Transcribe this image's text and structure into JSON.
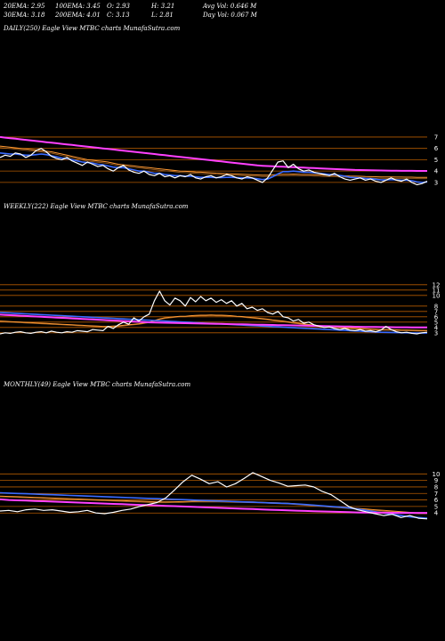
{
  "header": {
    "ema20": "20EMA: 2.95",
    "ema100": "100EMA: 3.45",
    "open": "O: 2.93",
    "high": "H: 3.21",
    "avg_vol": "Avg Vol: 0.646  M",
    "ema30": "30EMA: 3.18",
    "ema200": "200EMA: 4.01",
    "close": "C: 3.13",
    "low": "L: 2.81",
    "day_vol": "Day Vol: 0.067 M"
  },
  "panels": {
    "daily_title": "DAILY(250) Eagle   View  MTBC charts MunafaSutra.com",
    "weekly_title": "WEEKLY(222) Eagle   View  MTBC charts MunafaSutra.com",
    "monthly_title": "MONTHLY(49) Eagle   View  MTBC charts MunafaSutra.com"
  },
  "colors": {
    "price": "#ffffff",
    "ema_pink": "#ff40ff",
    "ema_blue": "#3a6bff",
    "ema_orange": "#ff9933",
    "ema_brown": "#a06020",
    "grid_orange": "#b35a00"
  },
  "chart_data": [
    {
      "type": "line",
      "title": "DAILY(250) Eagle   View  MTBC charts MunafaSutra.com",
      "y_ticks": [
        3,
        4,
        5,
        6,
        7
      ],
      "ylim": [
        2.6,
        7.7
      ],
      "price": [
        5.2,
        5.4,
        5.3,
        5.6,
        5.5,
        5.2,
        5.4,
        5.8,
        6.0,
        5.7,
        5.3,
        5.1,
        5.0,
        5.2,
        4.9,
        4.7,
        4.5,
        4.8,
        4.6,
        4.4,
        4.5,
        4.2,
        4.0,
        4.3,
        4.5,
        4.1,
        3.9,
        3.8,
        4.0,
        3.7,
        3.6,
        3.8,
        3.5,
        3.6,
        3.4,
        3.6,
        3.5,
        3.7,
        3.4,
        3.3,
        3.5,
        3.6,
        3.4,
        3.5,
        3.7,
        3.6,
        3.4,
        3.3,
        3.5,
        3.4,
        3.2,
        3.0,
        3.4,
        4.1,
        4.8,
        4.9,
        4.3,
        4.6,
        4.2,
        4.0,
        4.1,
        3.9,
        3.8,
        3.7,
        3.6,
        3.8,
        3.5,
        3.3,
        3.2,
        3.3,
        3.4,
        3.2,
        3.3,
        3.1,
        3.0,
        3.2,
        3.4,
        3.2,
        3.1,
        3.3,
        3.0,
        2.8,
        2.9,
        3.1
      ],
      "ema_pink": [
        7.0,
        6.95,
        6.9,
        6.85,
        6.8,
        6.75,
        6.7,
        6.65,
        6.6,
        6.55,
        6.5,
        6.45,
        6.4,
        6.35,
        6.3,
        6.25,
        6.2,
        6.15,
        6.1,
        6.05,
        6.0,
        5.95,
        5.9,
        5.85,
        5.8,
        5.75,
        5.7,
        5.65,
        5.6,
        5.55,
        5.5,
        5.45,
        5.4,
        5.35,
        5.3,
        5.25,
        5.2,
        5.15,
        5.1,
        5.05,
        5.0,
        4.95,
        4.9,
        4.85,
        4.8,
        4.75,
        4.7,
        4.65,
        4.6,
        4.55,
        4.5,
        4.47,
        4.44,
        4.42,
        4.4,
        4.38,
        4.36,
        4.34,
        4.32,
        4.3,
        4.28,
        4.26,
        4.24,
        4.22,
        4.2,
        4.18,
        4.16,
        4.14,
        4.12,
        4.1,
        4.09,
        4.08,
        4.07,
        4.06,
        4.05,
        4.04,
        4.03,
        4.03,
        4.02,
        4.02,
        4.02,
        4.01,
        4.01,
        4.01
      ],
      "ema_orange": [
        6.2,
        6.15,
        6.1,
        6.05,
        6.0,
        5.95,
        5.9,
        5.85,
        5.8,
        5.75,
        5.7,
        5.6,
        5.5,
        5.4,
        5.3,
        5.2,
        5.1,
        5.0,
        4.95,
        4.9,
        4.85,
        4.8,
        4.7,
        4.6,
        4.55,
        4.5,
        4.45,
        4.4,
        4.35,
        4.3,
        4.25,
        4.2,
        4.15,
        4.1,
        4.05,
        4.0,
        3.98,
        3.95,
        3.92,
        3.9,
        3.88,
        3.85,
        3.82,
        3.8,
        3.78,
        3.76,
        3.74,
        3.72,
        3.7,
        3.68,
        3.66,
        3.64,
        3.64,
        3.66,
        3.7,
        3.72,
        3.72,
        3.73,
        3.72,
        3.7,
        3.7,
        3.68,
        3.66,
        3.64,
        3.62,
        3.62,
        3.6,
        3.58,
        3.56,
        3.55,
        3.54,
        3.52,
        3.51,
        3.5,
        3.49,
        3.48,
        3.48,
        3.47,
        3.47,
        3.46,
        3.46,
        3.45,
        3.45,
        3.45
      ],
      "ema_blue": [
        5.6,
        5.55,
        5.5,
        5.5,
        5.45,
        5.4,
        5.4,
        5.45,
        5.5,
        5.45,
        5.35,
        5.25,
        5.15,
        5.1,
        5.0,
        4.9,
        4.8,
        4.75,
        4.7,
        4.6,
        4.55,
        4.45,
        4.35,
        4.3,
        4.3,
        4.2,
        4.1,
        4.0,
        4.0,
        3.9,
        3.8,
        3.8,
        3.7,
        3.65,
        3.6,
        3.6,
        3.55,
        3.55,
        3.5,
        3.45,
        3.45,
        3.45,
        3.42,
        3.42,
        3.45,
        3.45,
        3.42,
        3.4,
        3.4,
        3.38,
        3.32,
        3.25,
        3.3,
        3.5,
        3.75,
        3.95,
        3.95,
        4.0,
        3.95,
        3.9,
        3.9,
        3.85,
        3.8,
        3.75,
        3.7,
        3.7,
        3.62,
        3.55,
        3.45,
        3.42,
        3.4,
        3.35,
        3.33,
        3.28,
        3.22,
        3.22,
        3.25,
        3.22,
        3.2,
        3.2,
        3.15,
        3.05,
        3.0,
        3.05
      ]
    },
    {
      "type": "line",
      "title": "WEEKLY(222) Eagle   View  MTBC charts MunafaSutra.com",
      "y_ticks": [
        3,
        4,
        5,
        6,
        7,
        8,
        10,
        11,
        12
      ],
      "ylim": [
        2.3,
        12.8
      ],
      "price": [
        2.8,
        3.0,
        2.9,
        3.1,
        3.2,
        3.0,
        2.9,
        3.1,
        3.2,
        3.0,
        3.3,
        3.1,
        3.0,
        3.2,
        3.1,
        3.4,
        3.3,
        3.2,
        3.6,
        3.5,
        3.4,
        4.2,
        3.8,
        4.5,
        5.0,
        4.6,
        5.8,
        5.2,
        6.0,
        6.5,
        9.0,
        10.8,
        9.0,
        8.2,
        9.5,
        9.0,
        8.0,
        9.6,
        8.8,
        9.8,
        9.0,
        9.5,
        8.7,
        9.2,
        8.5,
        9.0,
        8.0,
        8.5,
        7.5,
        7.8,
        7.2,
        7.5,
        6.8,
        6.5,
        7.0,
        6.0,
        5.8,
        5.2,
        5.5,
        4.8,
        5.0,
        4.5,
        4.2,
        4.0,
        4.1,
        3.8,
        3.6,
        3.8,
        3.5,
        3.4,
        3.6,
        3.3,
        3.4,
        3.2,
        3.5,
        4.2,
        3.6,
        3.2,
        3.0,
        3.1,
        2.9,
        2.8,
        3.0,
        3.1
      ],
      "ema_pink": [
        6.4,
        6.35,
        6.3,
        6.25,
        6.2,
        6.15,
        6.1,
        6.05,
        6.0,
        5.95,
        5.9,
        5.85,
        5.8,
        5.75,
        5.7,
        5.65,
        5.6,
        5.55,
        5.5,
        5.45,
        5.4,
        5.35,
        5.3,
        5.25,
        5.2,
        5.15,
        5.1,
        5.05,
        5.0,
        4.95,
        4.92,
        4.9,
        4.88,
        4.86,
        4.84,
        4.82,
        4.8,
        4.78,
        4.76,
        4.74,
        4.72,
        4.7,
        4.68,
        4.66,
        4.64,
        4.62,
        4.6,
        4.58,
        4.56,
        4.54,
        4.52,
        4.5,
        4.48,
        4.46,
        4.44,
        4.42,
        4.4,
        4.38,
        4.36,
        4.34,
        4.32,
        4.3,
        4.28,
        4.26,
        4.24,
        4.22,
        4.2,
        4.18,
        4.16,
        4.14,
        4.12,
        4.1,
        4.09,
        4.08,
        4.07,
        4.06,
        4.05,
        4.04,
        4.03,
        4.03,
        4.02,
        4.02,
        4.01,
        4.01
      ],
      "ema_orange": [
        5.2,
        5.15,
        5.1,
        5.05,
        5.0,
        4.95,
        4.9,
        4.85,
        4.8,
        4.75,
        4.7,
        4.65,
        4.6,
        4.55,
        4.5,
        4.45,
        4.4,
        4.35,
        4.3,
        4.25,
        4.2,
        4.2,
        4.25,
        4.3,
        4.4,
        4.5,
        4.6,
        4.7,
        4.85,
        5.0,
        5.3,
        5.6,
        5.8,
        5.9,
        6.0,
        6.1,
        6.1,
        6.2,
        6.25,
        6.3,
        6.3,
        6.35,
        6.3,
        6.3,
        6.25,
        6.2,
        6.1,
        6.05,
        5.95,
        5.85,
        5.75,
        5.65,
        5.55,
        5.4,
        5.3,
        5.2,
        5.05,
        4.9,
        4.8,
        4.65,
        4.55,
        4.45,
        4.35,
        4.25,
        4.2,
        4.1,
        4.0,
        3.95,
        3.9,
        3.85,
        3.8,
        3.75,
        3.7,
        3.65,
        3.6,
        3.6,
        3.58,
        3.55,
        3.52,
        3.5,
        3.48,
        3.46,
        3.45,
        3.45
      ],
      "ema_blue": [
        6.8,
        6.75,
        6.7,
        6.65,
        6.6,
        6.55,
        6.5,
        6.45,
        6.4,
        6.35,
        6.3,
        6.25,
        6.2,
        6.15,
        6.1,
        6.05,
        6.0,
        5.95,
        5.9,
        5.85,
        5.8,
        5.75,
        5.7,
        5.65,
        5.6,
        5.55,
        5.5,
        5.45,
        5.4,
        5.35,
        5.3,
        5.25,
        5.2,
        5.15,
        5.1,
        5.05,
        5.0,
        4.95,
        4.9,
        4.85,
        4.8,
        4.75,
        4.7,
        4.65,
        4.6,
        4.55,
        4.5,
        4.45,
        4.4,
        4.35,
        4.3,
        4.25,
        4.2,
        4.15,
        4.1,
        4.05,
        4.0,
        3.95,
        3.9,
        3.85,
        3.8,
        3.75,
        3.7,
        3.65,
        3.6,
        3.55,
        3.5,
        3.45,
        3.4,
        3.35,
        3.3,
        3.25,
        3.2,
        3.15,
        3.1,
        3.08,
        3.06,
        3.04,
        3.02,
        3.0,
        2.98,
        2.96,
        2.95,
        2.95
      ]
    },
    {
      "type": "line",
      "title": "MONTHLY(49) Eagle   View  MTBC charts MunafaSutra.com",
      "y_ticks": [
        4,
        5,
        6,
        7,
        8,
        9,
        10
      ],
      "ylim": [
        2.8,
        11.0
      ],
      "price": [
        4.3,
        4.4,
        4.2,
        4.5,
        4.6,
        4.4,
        4.5,
        4.3,
        4.1,
        4.2,
        4.4,
        4.0,
        3.9,
        4.1,
        4.4,
        4.6,
        5.0,
        5.3,
        5.6,
        6.3,
        7.5,
        8.8,
        9.8,
        9.2,
        8.5,
        8.8,
        8.0,
        8.5,
        9.3,
        10.2,
        9.6,
        9.0,
        8.6,
        8.1,
        8.2,
        8.3,
        8.0,
        7.3,
        6.8,
        5.9,
        5.0,
        4.5,
        4.2,
        3.9,
        3.6,
        3.8,
        3.3,
        3.6,
        3.2,
        3.1
      ],
      "ema_pink": [
        6.1,
        6.0,
        5.95,
        5.9,
        5.85,
        5.8,
        5.75,
        5.7,
        5.65,
        5.6,
        5.55,
        5.5,
        5.45,
        5.4,
        5.35,
        5.3,
        5.25,
        5.2,
        5.15,
        5.1,
        5.05,
        5.0,
        4.95,
        4.9,
        4.85,
        4.8,
        4.75,
        4.7,
        4.65,
        4.6,
        4.55,
        4.5,
        4.45,
        4.4,
        4.36,
        4.32,
        4.28,
        4.24,
        4.2,
        4.16,
        4.12,
        4.09,
        4.07,
        4.05,
        4.04,
        4.03,
        4.02,
        4.02,
        4.01,
        4.01
      ],
      "ema_orange": [
        6.6,
        6.55,
        6.5,
        6.45,
        6.4,
        6.35,
        6.3,
        6.25,
        6.2,
        6.15,
        6.1,
        6.05,
        6.0,
        5.95,
        5.9,
        5.85,
        5.8,
        5.75,
        5.7,
        5.7,
        5.72,
        5.75,
        5.8,
        5.82,
        5.82,
        5.8,
        5.78,
        5.75,
        5.72,
        5.7,
        5.65,
        5.6,
        5.55,
        5.5,
        5.4,
        5.3,
        5.2,
        5.1,
        5.0,
        4.9,
        4.8,
        4.7,
        4.6,
        4.5,
        4.4,
        4.3,
        4.2,
        4.1,
        4.0,
        4.0
      ],
      "ema_blue": [
        7.1,
        7.05,
        7.0,
        6.95,
        6.9,
        6.85,
        6.8,
        6.75,
        6.7,
        6.65,
        6.6,
        6.55,
        6.5,
        6.45,
        6.4,
        6.35,
        6.3,
        6.25,
        6.2,
        6.15,
        6.1,
        6.05,
        6.0,
        5.95,
        5.9,
        5.85,
        5.8,
        5.75,
        5.7,
        5.65,
        5.6,
        5.55,
        5.5,
        5.45,
        5.4,
        5.3,
        5.2,
        5.1,
        5.0,
        4.9,
        4.8,
        4.6,
        4.4,
        4.2,
        4.0,
        3.8,
        3.6,
        3.4,
        3.3,
        3.2
      ]
    }
  ]
}
